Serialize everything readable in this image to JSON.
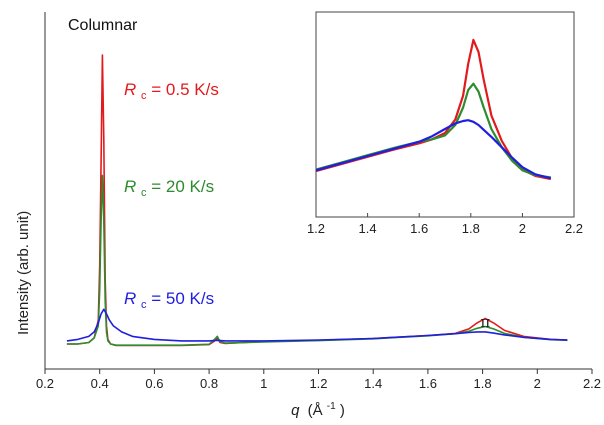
{
  "chart_data": [
    {
      "type": "line",
      "title": "Columnar",
      "xlabel_main": "q",
      "xlabel_unit": "(Å",
      "xlabel_exp": "-1",
      "xlabel_close": ")",
      "ylabel": "Intensity (arb. unit)",
      "xlim": [
        0.2,
        2.2
      ],
      "x_ticks": [
        "0.2",
        "0.4",
        "0.6",
        "0.8",
        "1",
        "1.2",
        "1.4",
        "1.6",
        "1.8",
        "2",
        "2.2"
      ],
      "annotation": "π",
      "annotation_x": 1.81,
      "series": [
        {
          "name_main": "R",
          "name_sub": "c",
          "name_rest": " = 0.5 K/s",
          "color": "#e31a1c",
          "x": [
            0.28,
            0.32,
            0.36,
            0.38,
            0.395,
            0.4,
            0.405,
            0.41,
            0.415,
            0.42,
            0.425,
            0.43,
            0.44,
            0.46,
            0.5,
            0.6,
            0.7,
            0.8,
            0.82,
            0.83,
            0.84,
            0.86,
            0.9,
            1.0,
            1.2,
            1.4,
            1.6,
            1.7,
            1.75,
            1.78,
            1.81,
            1.84,
            1.88,
            1.95,
            2.05,
            2.11
          ],
          "y": [
            4,
            4,
            4.5,
            6,
            12,
            30,
            65,
            100,
            72,
            25,
            10,
            5.5,
            4,
            3.5,
            3.5,
            3.5,
            3.5,
            3.8,
            5,
            6,
            4.5,
            4.2,
            4.4,
            4.8,
            5.2,
            5.8,
            6.8,
            7.5,
            9,
            11,
            12.5,
            11,
            8.5,
            6.5,
            5.5,
            5.3
          ]
        },
        {
          "name_main": "R",
          "name_sub": "c",
          "name_rest": " = 20 K/s",
          "color": "#2e8b2e",
          "x": [
            0.28,
            0.32,
            0.36,
            0.38,
            0.395,
            0.4,
            0.405,
            0.41,
            0.415,
            0.42,
            0.425,
            0.43,
            0.44,
            0.46,
            0.5,
            0.6,
            0.7,
            0.8,
            0.82,
            0.83,
            0.84,
            0.86,
            0.9,
            1.0,
            1.2,
            1.4,
            1.6,
            1.7,
            1.75,
            1.78,
            1.81,
            1.84,
            1.88,
            1.95,
            2.05,
            2.11
          ],
          "y": [
            4,
            4,
            4.5,
            6,
            10,
            22,
            45,
            60,
            45,
            18,
            8,
            5,
            4,
            3.6,
            3.6,
            3.6,
            3.6,
            3.9,
            5.5,
            6.5,
            4.8,
            4.3,
            4.4,
            4.7,
            5.1,
            5.7,
            6.7,
            7.4,
            8.2,
            9.2,
            9.8,
            9,
            7.5,
            6.2,
            5.4,
            5.2
          ]
        },
        {
          "name_main": "R",
          "name_sub": "c",
          "name_rest": " = 50 K/s",
          "color": "#1f1fe0",
          "x": [
            0.28,
            0.32,
            0.36,
            0.38,
            0.395,
            0.405,
            0.415,
            0.425,
            0.435,
            0.45,
            0.48,
            0.52,
            0.6,
            0.7,
            0.8,
            0.83,
            0.86,
            0.9,
            1.0,
            1.2,
            1.4,
            1.6,
            1.7,
            1.75,
            1.78,
            1.81,
            1.84,
            1.88,
            1.95,
            2.05,
            2.11
          ],
          "y": [
            5,
            5.5,
            6.5,
            8,
            11,
            14,
            15.5,
            14,
            12,
            10,
            8,
            6.5,
            5.5,
            5,
            5,
            5.2,
            5,
            5,
            5,
            5.3,
            5.8,
            6.8,
            7.4,
            7.8,
            8,
            8,
            7.6,
            7,
            6.2,
            5.5,
            5.3
          ]
        }
      ]
    },
    {
      "type": "line",
      "xlim": [
        1.2,
        2.2
      ],
      "x_ticks": [
        "1.2",
        "1.4",
        "1.6",
        "1.8",
        "2",
        "2.2"
      ],
      "series": [
        {
          "color": "#e31a1c",
          "x": [
            1.2,
            1.3,
            1.4,
            1.5,
            1.6,
            1.65,
            1.7,
            1.74,
            1.77,
            1.79,
            1.81,
            1.83,
            1.85,
            1.88,
            1.92,
            1.96,
            2.0,
            2.05,
            2.11
          ],
          "y": [
            3.0,
            3.9,
            4.8,
            5.7,
            6.5,
            7.0,
            7.8,
            9.5,
            12.5,
            16.5,
            19.5,
            18,
            14.5,
            10,
            6.8,
            4.6,
            3.2,
            2.4,
            2.0
          ]
        },
        {
          "color": "#2e8b2e",
          "x": [
            1.2,
            1.3,
            1.4,
            1.5,
            1.6,
            1.65,
            1.7,
            1.74,
            1.77,
            1.79,
            1.81,
            1.83,
            1.85,
            1.88,
            1.92,
            1.96,
            2.0,
            2.05,
            2.11
          ],
          "y": [
            3.2,
            4.1,
            5.0,
            5.9,
            6.7,
            7.0,
            7.5,
            8.8,
            11.0,
            13.2,
            14.0,
            13.0,
            11.0,
            8.3,
            6.0,
            4.3,
            3.1,
            2.5,
            2.2
          ]
        },
        {
          "color": "#1f1fe0",
          "x": [
            1.2,
            1.3,
            1.4,
            1.5,
            1.6,
            1.65,
            1.7,
            1.74,
            1.77,
            1.79,
            1.81,
            1.83,
            1.85,
            1.88,
            1.92,
            1.96,
            2.0,
            2.05,
            2.11
          ],
          "y": [
            3.1,
            4.0,
            4.9,
            5.8,
            6.7,
            7.4,
            8.3,
            9.0,
            9.3,
            9.4,
            9.2,
            8.8,
            8.2,
            7.3,
            6.0,
            4.7,
            3.5,
            2.6,
            2.1
          ]
        }
      ]
    }
  ]
}
